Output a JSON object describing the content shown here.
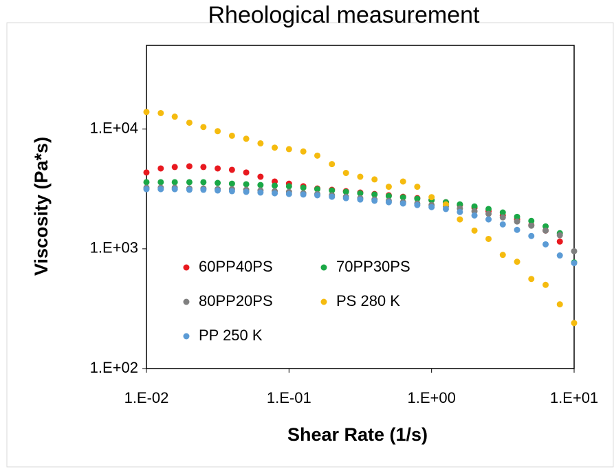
{
  "chart_data": {
    "type": "scatter",
    "title": "Rheological measurement",
    "x_label": "Shear Rate (1/s)",
    "y_label": "Viscosity (Pa*s)",
    "log_x": true,
    "log_y": true,
    "legend": "lower left",
    "xlim": [
      0.01,
      10
    ],
    "ylim": [
      100,
      50000
    ],
    "xticks": [
      {
        "value": 0.01,
        "label": "1.E-02"
      },
      {
        "value": 0.1,
        "label": "1.E-01"
      },
      {
        "value": 1,
        "label": "1.E+00"
      },
      {
        "value": 10,
        "label": "1.E+01"
      }
    ],
    "yticks": [
      {
        "value": 100,
        "label": "1.E+02"
      },
      {
        "value": 1000,
        "label": "1.E+03"
      },
      {
        "value": 10000,
        "label": "1.E+04"
      }
    ],
    "x": [
      0.01,
      0.0126,
      0.0158,
      0.02,
      0.0251,
      0.0316,
      0.0398,
      0.0501,
      0.0631,
      0.0794,
      0.1,
      0.126,
      0.158,
      0.2,
      0.251,
      0.316,
      0.398,
      0.501,
      0.631,
      0.794,
      1,
      1.26,
      1.58,
      2,
      2.51,
      3.16,
      3.98,
      5.01,
      6.31,
      7.94,
      10
    ],
    "series": [
      {
        "name": "60PP40PS",
        "color": "#e8191f",
        "values": [
          4340,
          4690,
          4820,
          4890,
          4820,
          4690,
          4570,
          4340,
          4000,
          3650,
          3500,
          3330,
          3190,
          3110,
          3030,
          2950,
          2870,
          2800,
          2720,
          2650,
          2550,
          2450,
          2320,
          2200,
          2060,
          1900,
          1760,
          1580,
          1420,
          1150,
          null
        ]
      },
      {
        "name": "70PP30PS",
        "color": "#1aa846",
        "values": [
          3600,
          3600,
          3600,
          3600,
          3600,
          3550,
          3500,
          3460,
          3410,
          3370,
          3330,
          3240,
          3150,
          3070,
          2990,
          2910,
          2840,
          2760,
          2690,
          2620,
          2550,
          2450,
          2350,
          2260,
          2150,
          2010,
          1850,
          1710,
          1540,
          1350,
          770
        ]
      },
      {
        "name": "80PP20PS",
        "color": "#808080",
        "values": [
          3240,
          3240,
          3240,
          3190,
          3190,
          3150,
          3150,
          3110,
          3070,
          3030,
          2990,
          2910,
          2870,
          2800,
          2720,
          2650,
          2580,
          2520,
          2450,
          2390,
          2320,
          2260,
          2170,
          2060,
          1960,
          1830,
          1690,
          1560,
          1420,
          1300,
          955
        ]
      },
      {
        "name": "PS 280 K",
        "color": "#f5bb0f",
        "values": [
          13900,
          13600,
          12700,
          11300,
          10400,
          9600,
          8800,
          8300,
          7600,
          7000,
          6800,
          6500,
          6000,
          5100,
          4300,
          4000,
          3800,
          3300,
          3650,
          3300,
          2700,
          2350,
          1760,
          1420,
          1210,
          890,
          780,
          560,
          500,
          344,
          240
        ]
      },
      {
        "name": "PP 250 K",
        "color": "#5b9bd5",
        "values": [
          3150,
          3150,
          3150,
          3110,
          3110,
          3070,
          3030,
          2990,
          2950,
          2910,
          2870,
          2840,
          2800,
          2720,
          2650,
          2580,
          2520,
          2450,
          2390,
          2320,
          2230,
          2150,
          2030,
          1900,
          1760,
          1600,
          1440,
          1280,
          1090,
          880,
          760
        ]
      }
    ]
  }
}
